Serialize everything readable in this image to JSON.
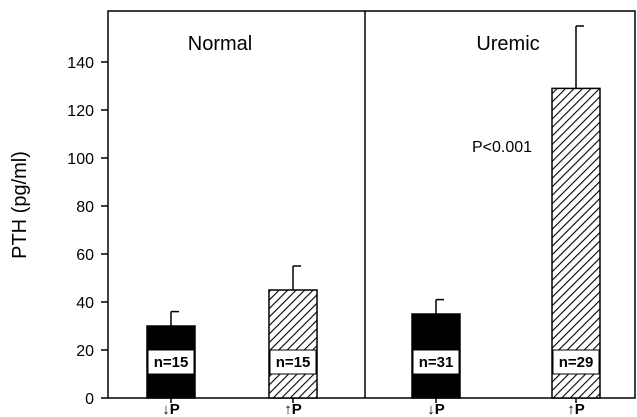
{
  "chart_data": {
    "type": "bar",
    "ylabel": "PTH (pg/ml)",
    "ylim": [
      0,
      160
    ],
    "yticks": [
      0,
      20,
      40,
      60,
      80,
      100,
      120,
      140
    ],
    "groups": [
      "Normal",
      "Uremic"
    ],
    "bars": [
      {
        "group": "Normal",
        "category": "↓P",
        "value": 30,
        "error": 6,
        "n_label": "n=15",
        "fill": "solid"
      },
      {
        "group": "Normal",
        "category": "↑P",
        "value": 45,
        "error": 10,
        "n_label": "n=15",
        "fill": "hatched"
      },
      {
        "group": "Uremic",
        "category": "↓P",
        "value": 35,
        "error": 6,
        "n_label": "n=31",
        "fill": "solid"
      },
      {
        "group": "Uremic",
        "category": "↑P",
        "value": 129,
        "error": 26,
        "n_label": "n=29",
        "fill": "hatched"
      }
    ],
    "annotation": "P<0.001",
    "grid": false,
    "colors": {
      "bar": "#000000",
      "background": "#ffffff"
    }
  }
}
